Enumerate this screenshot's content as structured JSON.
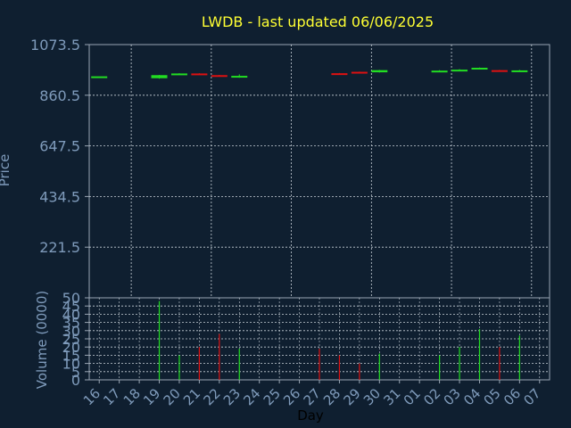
{
  "chart_data": [
    {
      "type": "candlestick",
      "title": "LWDB - last updated 06/06/2025",
      "ylabel": "Price",
      "ylim": [
        8.5,
        1073.5
      ],
      "yticks": [
        "1073.5",
        "860.5",
        "647.5",
        "434.5",
        "221.5"
      ],
      "grid": true,
      "candles": [
        {
          "day": "16",
          "open": 940,
          "close": 940,
          "high": 940,
          "low": 940,
          "direction": "up"
        },
        {
          "day": "19",
          "open": 932,
          "close": 945,
          "high": 946,
          "low": 930,
          "direction": "up"
        },
        {
          "day": "20",
          "open": 948,
          "close": 952,
          "high": 953,
          "low": 947,
          "direction": "up"
        },
        {
          "day": "21",
          "open": 952,
          "close": 948,
          "high": 953,
          "low": 947,
          "direction": "down"
        },
        {
          "day": "22",
          "open": 945,
          "close": 940,
          "high": 946,
          "low": 939,
          "direction": "down"
        },
        {
          "day": "23",
          "open": 938,
          "close": 942,
          "high": 948,
          "low": 934,
          "direction": "up"
        },
        {
          "day": "28",
          "open": 953,
          "close": 948,
          "high": 954,
          "low": 947,
          "direction": "down"
        },
        {
          "day": "29",
          "open": 959,
          "close": 954,
          "high": 960,
          "low": 953,
          "direction": "down"
        },
        {
          "day": "30",
          "open": 957,
          "close": 966,
          "high": 967,
          "low": 956,
          "direction": "up"
        },
        {
          "day": "02",
          "open": 960,
          "close": 964,
          "high": 966,
          "low": 959,
          "direction": "up"
        },
        {
          "day": "03",
          "open": 965,
          "close": 968,
          "high": 970,
          "low": 964,
          "direction": "up"
        },
        {
          "day": "04",
          "open": 970,
          "close": 976,
          "high": 977,
          "low": 969,
          "direction": "up"
        },
        {
          "day": "05",
          "open": 966,
          "close": 961,
          "high": 967,
          "low": 960,
          "direction": "down"
        },
        {
          "day": "06",
          "open": 962,
          "close": 965,
          "high": 967,
          "low": 961,
          "direction": "up"
        }
      ]
    },
    {
      "type": "bar",
      "ylabel": "Volume (0000)",
      "xlabel": "Day",
      "ylim": [
        0,
        50
      ],
      "yticks": [
        "50",
        "45",
        "40",
        "35",
        "30",
        "25",
        "20",
        "15",
        "10",
        "5",
        "0"
      ],
      "grid": true,
      "categories": [
        "16",
        "17",
        "18",
        "19",
        "20",
        "21",
        "22",
        "23",
        "24",
        "25",
        "26",
        "27",
        "28",
        "29",
        "30",
        "31",
        "01",
        "02",
        "03",
        "04",
        "05",
        "06",
        "07"
      ],
      "values": [
        0,
        0,
        0,
        48,
        15,
        20,
        28,
        19,
        0,
        0,
        0,
        19,
        15,
        10,
        16,
        0,
        0,
        15,
        20,
        31,
        20,
        27,
        0
      ],
      "directions": [
        "",
        "",
        "",
        "up",
        "up",
        "down",
        "down",
        "up",
        "",
        "",
        "",
        "down",
        "down",
        "down",
        "up",
        "",
        "",
        "up",
        "up",
        "up",
        "down",
        "up",
        ""
      ]
    }
  ],
  "colors": {
    "background": "#0f1f30",
    "plot_border": "#9aa6b4",
    "grid": "#c8d0d8",
    "title": "#ffff33",
    "axis_text": "#7f9bbb",
    "up": "#22dd22",
    "down": "#dd1111",
    "xlabel": "#000000"
  }
}
